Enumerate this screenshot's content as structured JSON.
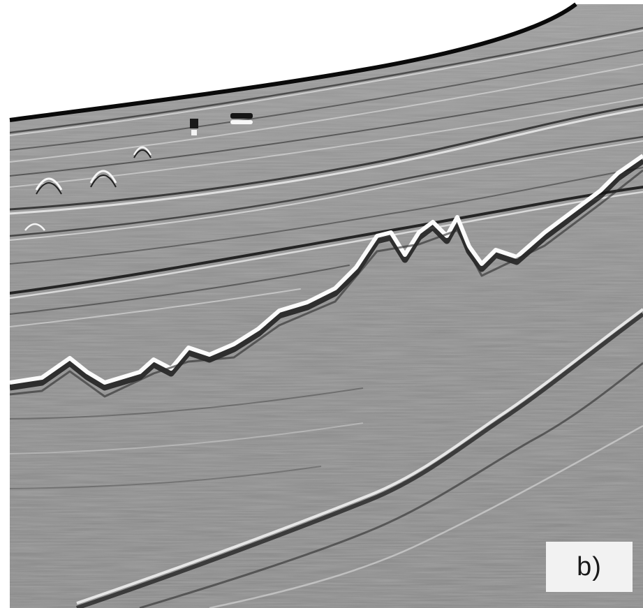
{
  "figure": {
    "panel_label": "b)"
  },
  "colors": {
    "background": "#ffffff",
    "section_base": "#8e8e8e",
    "reflector_dark": "#141414",
    "reflector_light": "#f4f4f4",
    "label_box": "#f2f2f2"
  }
}
